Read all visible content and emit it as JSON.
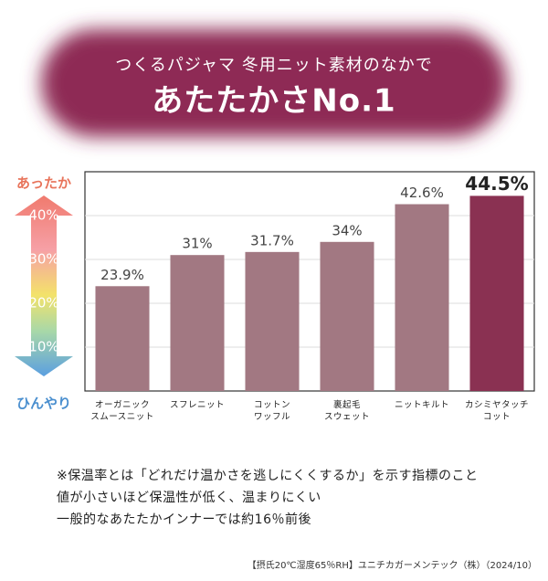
{
  "chart_data": {
    "type": "bar",
    "subtitle": "つくるパジャマ 冬用ニット素材のなかで",
    "title": "あたたかさNo.1",
    "axis_top_label": "あったか",
    "axis_bottom_label": "ひんやり",
    "categories": [
      "オーガニック\nスムースニット",
      "スフレニット",
      "コットン\nワッフル",
      "裏起毛\nスウェット",
      "ニットキルト",
      "カシミヤタッチ\nコット"
    ],
    "values": [
      23.9,
      31,
      31.7,
      34,
      42.6,
      44.5
    ],
    "value_labels": [
      "23.9%",
      "31%",
      "31.7%",
      "34%",
      "42.6%",
      "44.5%"
    ],
    "colors": [
      "#a27882",
      "#a27882",
      "#a27882",
      "#a27882",
      "#a27882",
      "#8a3152"
    ],
    "ylim": [
      0,
      50
    ],
    "yticks": [
      {
        "value": 10,
        "label": "10%"
      },
      {
        "value": 20,
        "label": "20%"
      },
      {
        "value": 30,
        "label": "30%"
      },
      {
        "value": 40,
        "label": "40%"
      }
    ],
    "grid": true
  },
  "notes": [
    "※保温率とは「どれだけ温かさを逃しにくくするか」を示す指標のこと",
    "値が小さいほど保温性が低く、温まりにくい",
    "一般的なあたたかインナーでは約16％前後"
  ],
  "source": "【摂氏20℃湿度65％RH】ユニチカガーメンテック（株）（2024/10）"
}
